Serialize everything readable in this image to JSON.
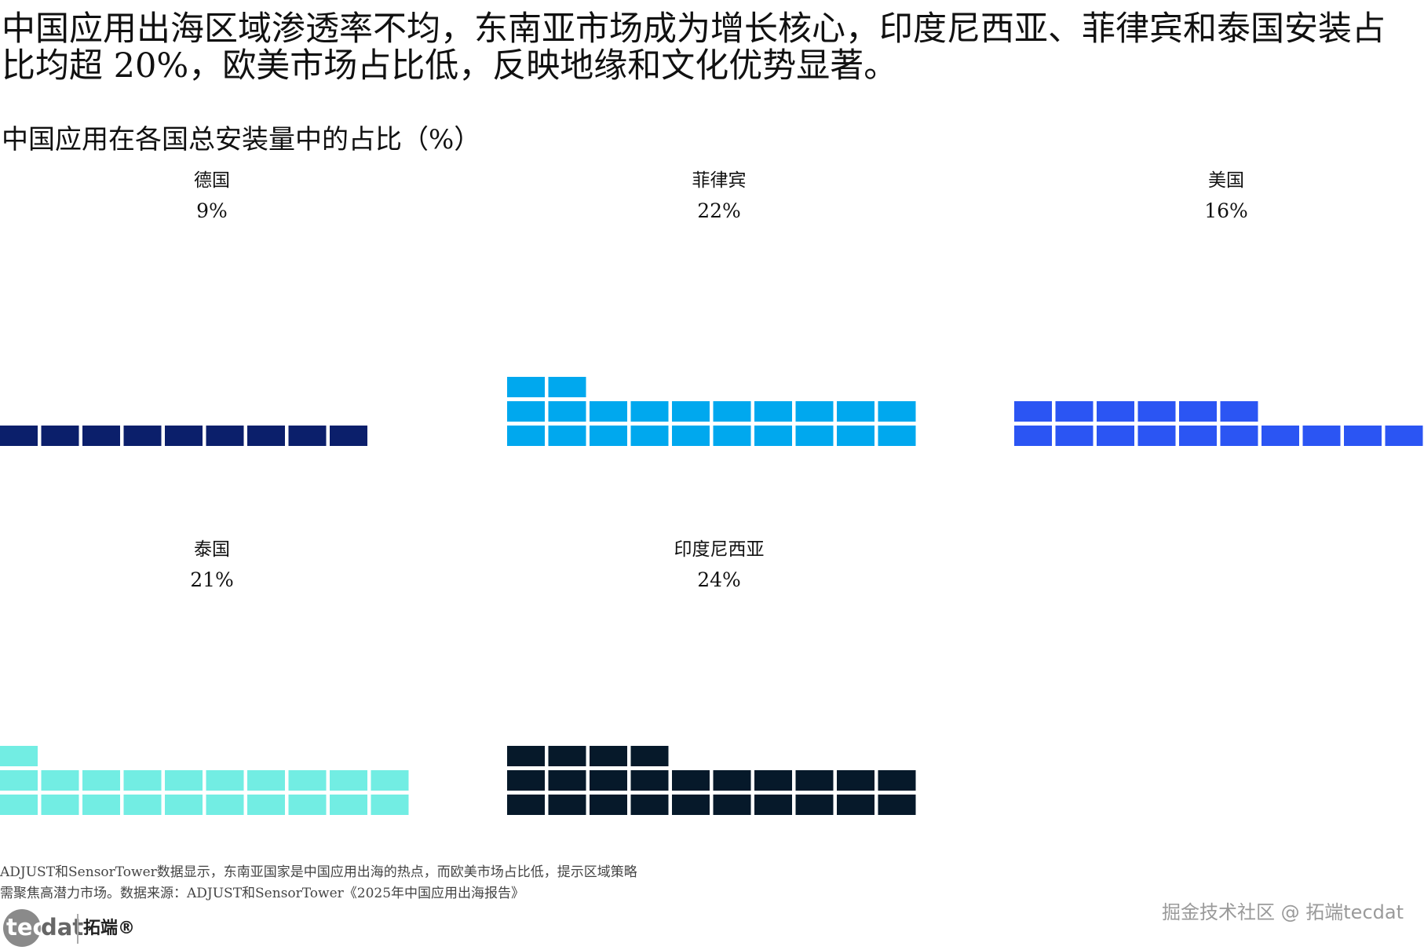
{
  "headline": "中国应用出海区域渗透率不均，东南亚市场成为增长核心，印度尼西亚、菲律宾和泰国安装占比均超 20%，欧美市场占比低，反映地缘和文化优势显著。",
  "chart_data": {
    "type": "waffle",
    "title": "中国应用在各国总安装量中的占比（%）",
    "unit": "%",
    "layout": "small multiples, 3 per row; each cell = 1%",
    "panels": [
      {
        "category": "德国",
        "value": 9,
        "value_label": "9%",
        "color": "#0b1f6b"
      },
      {
        "category": "菲律宾",
        "value": 22,
        "value_label": "22%",
        "color": "#00a8ee"
      },
      {
        "category": "美国",
        "value": 16,
        "value_label": "16%",
        "color": "#2b55f3"
      },
      {
        "category": "泰国",
        "value": 21,
        "value_label": "21%",
        "color": "#72ede3"
      },
      {
        "category": "印度尼西亚",
        "value": 24,
        "value_label": "24%",
        "color": "#06192a"
      }
    ]
  },
  "note_lines": [
    "ADJUST和SensorTower数据显示，东南亚国家是中国应用出海的热点，而欧美市场占比低，提示区域策略",
    "需聚焦高潜力市场。数据来源：ADJUST和SensorTower《2025年中国应用出海报告》"
  ],
  "logo": {
    "tec": "tec",
    "dat": "dat",
    "cn": "拓端®"
  },
  "watermark": "掘金技术社区 @ 拓端tecdat"
}
